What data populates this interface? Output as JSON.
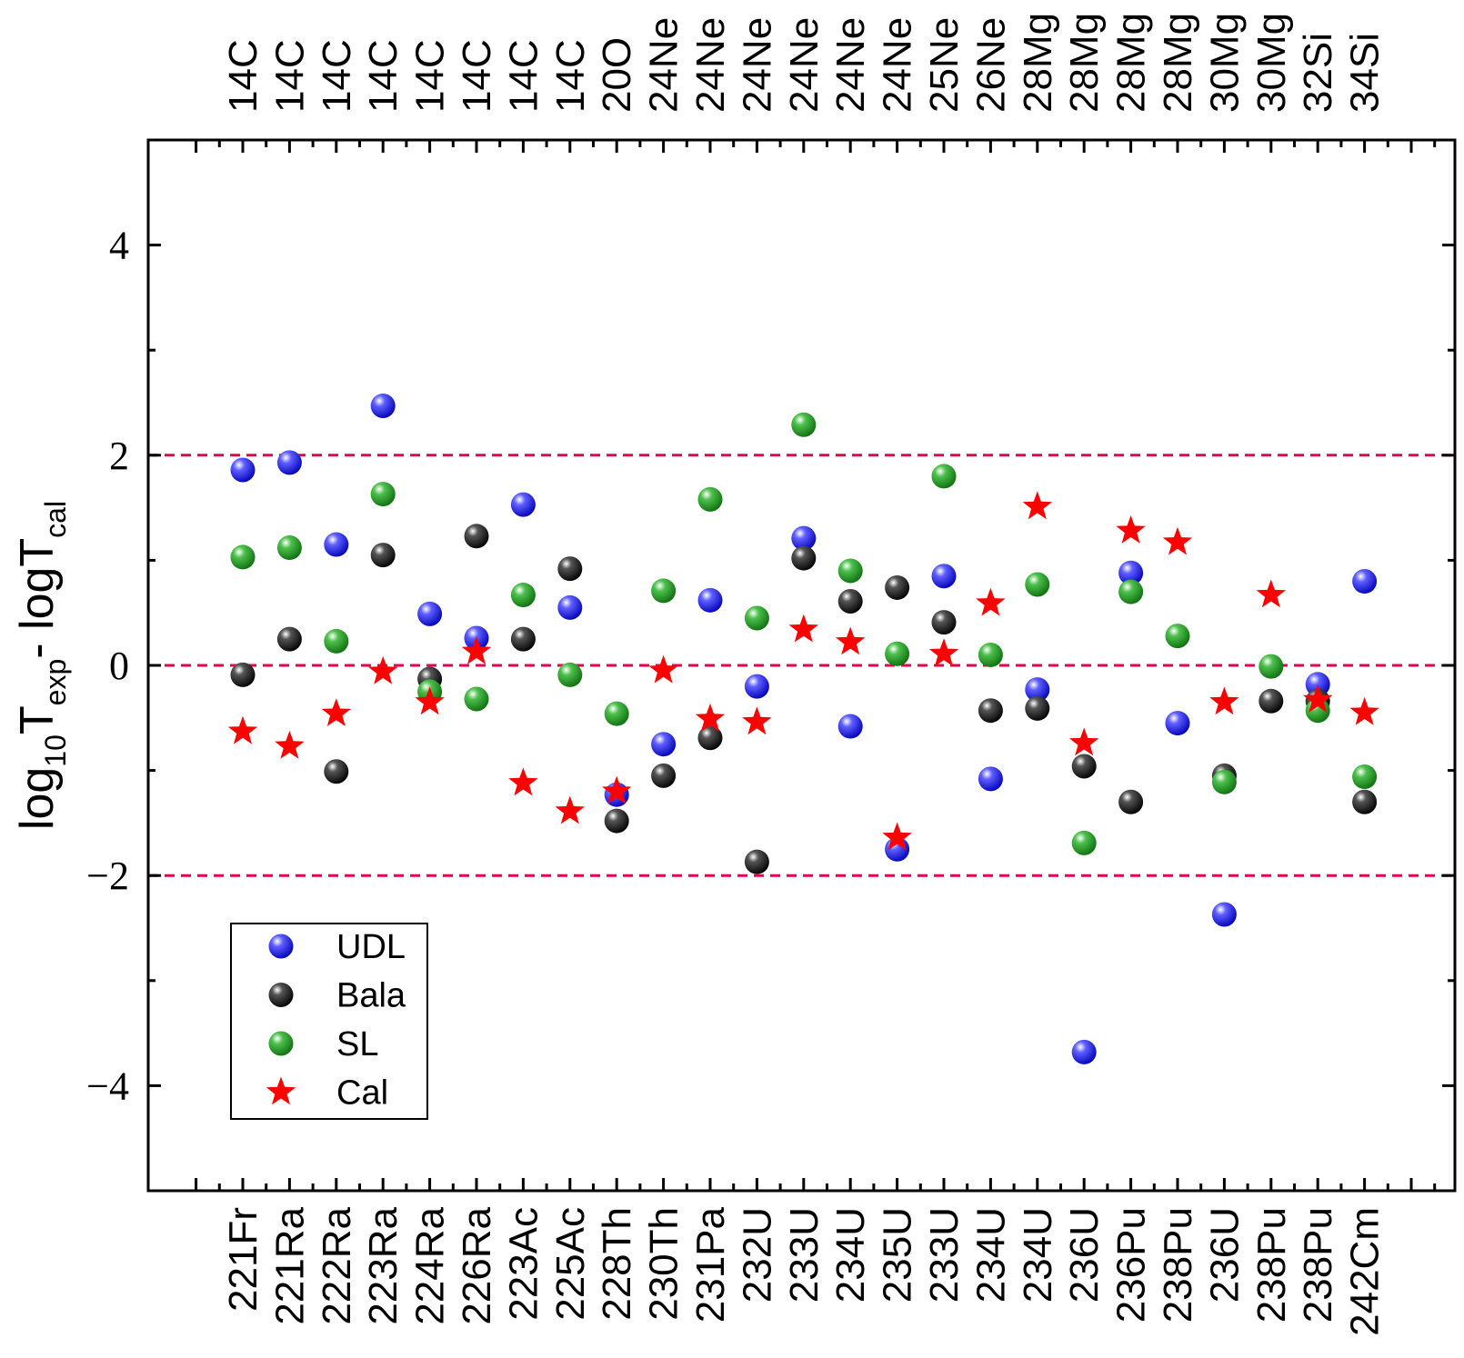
{
  "chart_data": {
    "type": "scatter",
    "ylabel": {
      "base1": "log",
      "sub1": "10",
      "base2": "T",
      "sub2": "exp",
      "mid": "- logT",
      "sub3": "cal"
    },
    "ylim": [
      -5,
      5
    ],
    "yticks": [
      -4,
      -2,
      0,
      2,
      4
    ],
    "ytick_labels": [
      "−4",
      "−2",
      "0",
      "2",
      "4"
    ],
    "reference_lines": [
      2,
      0,
      -2
    ],
    "reference_line_color": "#e8004f",
    "categories_bottom": [
      "221Fr",
      "221Ra",
      "222Ra",
      "223Ra",
      "224Ra",
      "226Ra",
      "223Ac",
      "225Ac",
      "228Th",
      "230Th",
      "231Pa",
      "232U",
      "233U",
      "234U",
      "235U",
      "233U",
      "234U",
      "234U",
      "236U",
      "236Pu",
      "238Pu",
      "236U",
      "238Pu",
      "238Pu",
      "242Cm"
    ],
    "categories_top": [
      "14C",
      "14C",
      "14C",
      "14C",
      "14C",
      "14C",
      "14C",
      "14C",
      "20O",
      "24Ne",
      "24Ne",
      "24Ne",
      "24Ne",
      "24Ne",
      "24Ne",
      "25Ne",
      "26Ne",
      "28Mg",
      "28Mg",
      "28Mg",
      "28Mg",
      "30Mg",
      "30Mg",
      "32Si",
      "34Si"
    ],
    "legend_position": "bottom-left",
    "series": [
      {
        "name": "UDL",
        "marker": "sphere",
        "color": "#1010ff",
        "values": [
          1.86,
          1.93,
          1.15,
          2.47,
          0.49,
          0.26,
          1.53,
          0.55,
          -1.23,
          -0.75,
          0.62,
          -0.2,
          1.21,
          -0.58,
          -1.75,
          0.85,
          -1.08,
          -0.23,
          -3.68,
          0.88,
          -0.55,
          -2.37,
          null,
          -0.18,
          0.8
        ]
      },
      {
        "name": "Bala",
        "marker": "sphere",
        "color": "#111111",
        "values": [
          -0.09,
          0.25,
          -1.01,
          1.05,
          -0.13,
          1.23,
          0.25,
          0.92,
          -1.48,
          -1.05,
          -0.69,
          -1.87,
          1.02,
          0.61,
          0.74,
          0.41,
          -0.43,
          -0.41,
          -0.96,
          -1.3,
          null,
          -1.05,
          -0.34,
          -0.34,
          -1.3
        ]
      },
      {
        "name": "SL",
        "marker": "sphere",
        "color": "#1f9e1f",
        "values": [
          1.03,
          1.12,
          0.23,
          1.63,
          -0.25,
          -0.32,
          0.67,
          -0.09,
          -0.46,
          0.71,
          1.58,
          0.45,
          2.29,
          0.9,
          0.11,
          1.8,
          0.1,
          0.77,
          -1.69,
          0.7,
          0.28,
          -1.11,
          -0.01,
          -0.43,
          -1.06
        ]
      },
      {
        "name": "Cal",
        "marker": "star",
        "color": "#ff0000",
        "values": [
          -0.63,
          -0.77,
          -0.46,
          -0.06,
          -0.35,
          0.13,
          -1.12,
          -1.39,
          -1.2,
          -0.05,
          -0.51,
          -0.54,
          0.34,
          0.22,
          -1.64,
          0.11,
          0.59,
          1.51,
          -0.74,
          1.28,
          1.17,
          -0.35,
          0.67,
          -0.33,
          -0.45
        ]
      }
    ]
  }
}
